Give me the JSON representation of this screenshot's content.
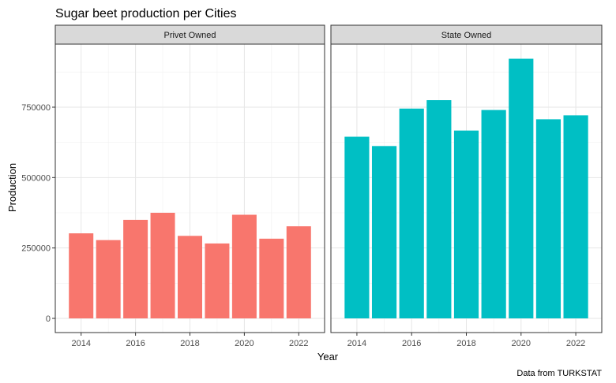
{
  "chart_data": {
    "type": "bar",
    "title": "Sugar beet production per Cities",
    "xlabel": "Year",
    "ylabel": "Production",
    "caption": "Data from TURKSTAT",
    "x": [
      2014,
      2015,
      2016,
      2017,
      2018,
      2019,
      2020,
      2021,
      2022
    ],
    "x_ticks": [
      "2014",
      "2016",
      "2018",
      "2020",
      "2022"
    ],
    "y_ticks": [
      "0",
      "250000",
      "500000",
      "750000"
    ],
    "ylim": [
      0,
      970000
    ],
    "grid": true,
    "facets": [
      {
        "label": "Privet Owned",
        "color": "#F8766D",
        "values": [
          302000,
          278000,
          350000,
          375000,
          293000,
          266000,
          368000,
          283000,
          327000
        ]
      },
      {
        "label": "State Owned",
        "color": "#00BFC4",
        "values": [
          645000,
          612000,
          745000,
          775000,
          667000,
          740000,
          922000,
          707000,
          721000
        ]
      }
    ]
  }
}
